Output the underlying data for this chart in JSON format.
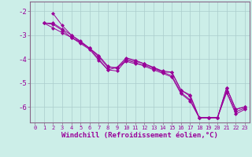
{
  "title": "",
  "xlabel": "Windchill (Refroidissement éolien,°C)",
  "bg_color": "#cceee8",
  "grid_color": "#aacccc",
  "line_color": "#990099",
  "spine_color": "#886688",
  "xlim": [
    -0.5,
    23.5
  ],
  "ylim": [
    -6.65,
    -1.6
  ],
  "yticks": [
    -6,
    -5,
    -4,
    -3,
    -2
  ],
  "xticks": [
    0,
    1,
    2,
    3,
    4,
    5,
    6,
    7,
    8,
    9,
    10,
    11,
    12,
    13,
    14,
    15,
    16,
    17,
    18,
    19,
    20,
    21,
    22,
    23
  ],
  "series": [
    {
      "x": [
        1,
        2,
        3,
        4,
        5,
        6,
        7,
        8,
        9,
        10,
        11,
        12,
        13,
        14,
        15,
        16,
        17,
        18,
        19,
        20,
        21,
        22,
        23
      ],
      "y": [
        -2.5,
        -2.55,
        -2.8,
        -3.1,
        -3.3,
        -3.55,
        -3.9,
        -4.35,
        -4.35,
        -3.95,
        -4.05,
        -4.2,
        -4.35,
        -4.55,
        -4.55,
        -5.3,
        -5.55,
        -6.45,
        -6.45,
        -6.45,
        -5.2,
        -6.1,
        -6.0
      ]
    },
    {
      "x": [
        1,
        2,
        3,
        4,
        5,
        6,
        7,
        8,
        9,
        10,
        11,
        12,
        13,
        14,
        15,
        16,
        17,
        18,
        19,
        20,
        21,
        22,
        23
      ],
      "y": [
        -2.5,
        -2.7,
        -2.9,
        -3.1,
        -3.35,
        -3.6,
        -4.05,
        -4.45,
        -4.35,
        -4.1,
        -4.2,
        -4.25,
        -4.4,
        -4.55,
        -4.7,
        -5.4,
        -5.7,
        -6.45,
        -6.45,
        -6.45,
        -5.35,
        -6.2,
        -6.05
      ]
    },
    {
      "x": [
        2,
        3,
        4,
        5,
        6,
        7,
        8,
        9,
        10,
        11,
        12,
        13,
        14,
        15,
        16,
        17,
        18,
        19,
        20,
        21,
        22,
        23
      ],
      "y": [
        -2.1,
        -2.6,
        -3.0,
        -3.3,
        -3.55,
        -4.0,
        -4.45,
        -4.5,
        -4.05,
        -4.15,
        -4.3,
        -4.45,
        -4.6,
        -4.75,
        -5.45,
        -5.75,
        -6.45,
        -6.45,
        -6.45,
        -5.4,
        -6.3,
        -6.1
      ]
    },
    {
      "x": [
        1,
        2,
        3,
        4,
        5,
        6,
        7,
        8,
        9,
        10,
        11,
        12,
        13,
        14,
        15,
        16,
        17,
        18,
        19,
        20,
        21,
        22,
        23
      ],
      "y": [
        -2.5,
        -2.5,
        -2.75,
        -3.0,
        -3.25,
        -3.55,
        -3.85,
        -4.3,
        -4.4,
        -4.0,
        -4.1,
        -4.2,
        -4.35,
        -4.5,
        -4.55,
        -5.3,
        -5.5,
        -6.45,
        -6.45,
        -6.45,
        -5.2,
        -6.1,
        -6.0
      ]
    }
  ]
}
